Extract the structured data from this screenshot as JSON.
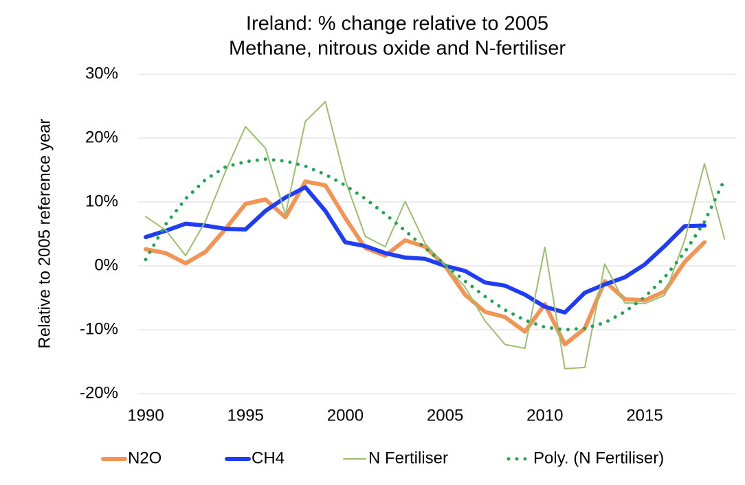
{
  "chart_data": {
    "type": "line",
    "title": "Ireland: % change relative to 2005",
    "subtitle": "Methane, nitrous oxide and N-fertiliser",
    "y_label": "Relative to 2005 reference year",
    "x": [
      1990,
      1991,
      1992,
      1993,
      1994,
      1995,
      1996,
      1997,
      1998,
      1999,
      2000,
      2001,
      2002,
      2003,
      2004,
      2005,
      2006,
      2007,
      2008,
      2009,
      2010,
      2011,
      2012,
      2013,
      2014,
      2015,
      2016,
      2017,
      2018,
      2019
    ],
    "xlim": [
      1989.6,
      2019.6
    ],
    "xticks": [
      1990,
      1995,
      2000,
      2005,
      2010,
      2015
    ],
    "ylim": [
      -20,
      30
    ],
    "yticks": [
      {
        "value": -20,
        "label": "-20%"
      },
      {
        "value": -10,
        "label": "-10%"
      },
      {
        "value": 0,
        "label": "0%"
      },
      {
        "value": 10,
        "label": "10%"
      },
      {
        "value": 20,
        "label": "20%"
      },
      {
        "value": 30,
        "label": "30%"
      }
    ],
    "grid": true,
    "legend": "bottom",
    "series": [
      {
        "name": "N2O",
        "color": "#f39354",
        "width": 6,
        "dotted": false,
        "values": [
          2.6,
          2.0,
          0.4,
          2.2,
          5.8,
          9.7,
          10.4,
          7.6,
          13.2,
          12.6,
          7.5,
          2.8,
          1.6,
          4.0,
          3.0,
          0,
          -4.5,
          -7.2,
          -8.0,
          -10.3,
          -6.0,
          -12.3,
          -9.8,
          -2.4,
          -5.2,
          -5.4,
          -4.0,
          0.6,
          3.7,
          null
        ]
      },
      {
        "name": "CH4",
        "color": "#1f3df5",
        "width": 6,
        "dotted": false,
        "values": [
          4.5,
          5.5,
          6.6,
          6.3,
          5.8,
          5.7,
          8.6,
          10.7,
          12.3,
          8.6,
          3.7,
          3.1,
          2.0,
          1.3,
          1.1,
          0,
          -0.8,
          -2.6,
          -3.1,
          -4.5,
          -6.4,
          -7.3,
          -4.2,
          -2.9,
          -1.8,
          0.2,
          3.1,
          6.2,
          6.3,
          null
        ]
      },
      {
        "name": "N Fertiliser",
        "color": "#9bbf6a",
        "width": 2,
        "dotted": false,
        "values": [
          7.7,
          5.6,
          1.6,
          7.0,
          14.8,
          21.8,
          18.4,
          8.0,
          22.6,
          25.7,
          13.4,
          4.6,
          3.0,
          10.1,
          3.5,
          0,
          -3.3,
          -8.6,
          -12.3,
          -12.9,
          2.9,
          -16.1,
          -15.9,
          0.3,
          -5.8,
          -5.9,
          -4.6,
          4.0,
          16.0,
          4.2
        ]
      },
      {
        "name": "Poly. (N Fertiliser)",
        "color": "#1fa650",
        "width": 5,
        "dotted": true,
        "values": [
          1.0,
          6.5,
          10.5,
          13.5,
          15.5,
          16.3,
          16.7,
          16.4,
          15.6,
          14.3,
          12.6,
          10.5,
          8.1,
          5.5,
          2.8,
          0.2,
          -2.4,
          -4.8,
          -6.9,
          -8.5,
          -9.6,
          -10.0,
          -9.8,
          -8.9,
          -7.2,
          -4.9,
          -1.8,
          2.1,
          6.9,
          13.5
        ]
      }
    ]
  }
}
